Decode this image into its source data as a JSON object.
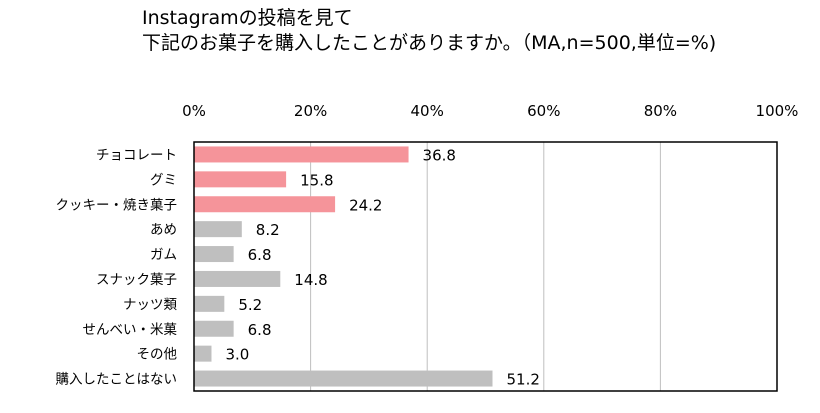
{
  "chart_data": {
    "type": "bar",
    "orientation": "horizontal",
    "title_lines": [
      "Instagramの投稿を見て",
      "下記のお菓子を購入したことがありますか。（MA,n=500,単位=%)"
    ],
    "xlim": [
      0,
      100
    ],
    "x_ticks": [
      "0%",
      "20%",
      "40%",
      "60%",
      "80%",
      "100%"
    ],
    "grid": true,
    "categories": [
      "チョコレート",
      "グミ",
      "クッキー・焼き菓子",
      "あめ",
      "ガム",
      "スナック菓子",
      "ナッツ類",
      "せんべい・米菓",
      "その他",
      "購入したことはない"
    ],
    "values": [
      36.8,
      15.8,
      24.2,
      8.2,
      6.8,
      14.8,
      5.2,
      6.8,
      3.0,
      51.2
    ],
    "value_labels": [
      "36.8",
      "15.8",
      "24.2",
      "8.2",
      "6.8",
      "14.8",
      "5.2",
      "6.8",
      "3.0",
      "51.2"
    ],
    "highlight_count": 3,
    "colors": {
      "highlight": "#F5949A",
      "normal": "#BFBFBF",
      "grid": "#BFBFBF",
      "frame": "#000000"
    }
  }
}
